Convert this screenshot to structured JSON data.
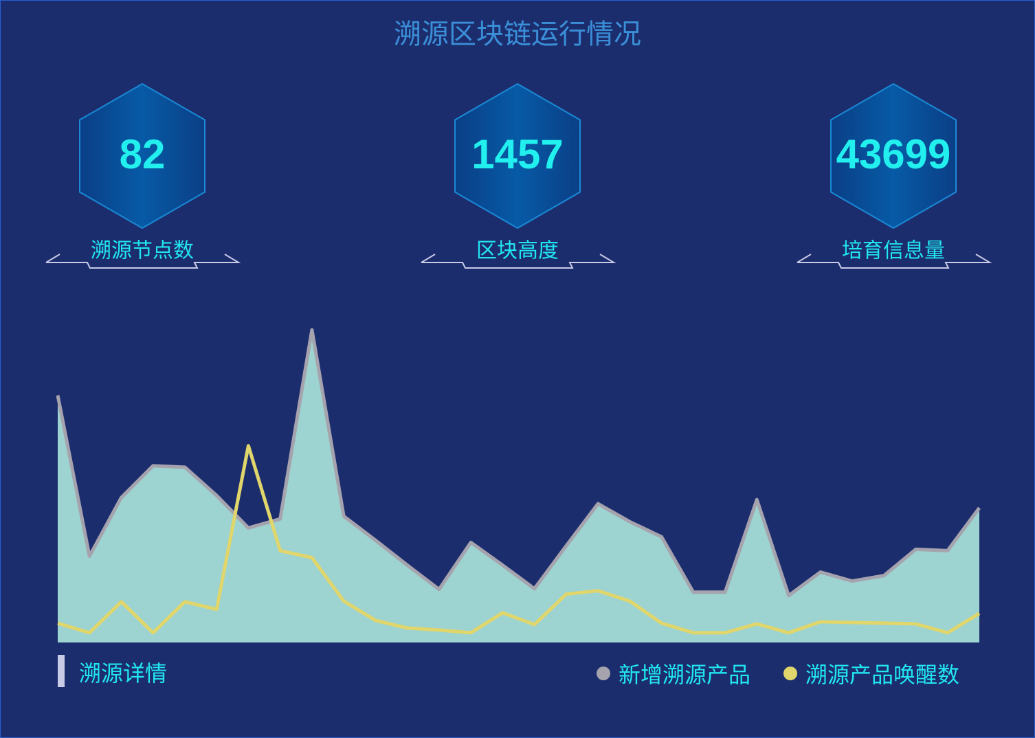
{
  "title": "溯源区块链运行情况",
  "stats": [
    {
      "value": 82,
      "label": "溯源节点数"
    },
    {
      "value": 1457,
      "label": "区块高度"
    },
    {
      "value": 43699,
      "label": "培育信息量"
    }
  ],
  "section_title": "溯源详情",
  "chart_data": {
    "type": "area",
    "series": [
      {
        "name": "新增溯源产品",
        "color": "#a5a3ae",
        "fill": "#9dd3d0",
        "values": [
          358,
          125,
          210,
          256,
          254,
          213,
          166,
          179,
          453,
          183,
          148,
          112,
          77,
          145,
          112,
          78,
          140,
          201,
          175,
          153,
          73,
          73,
          207,
          68,
          102,
          89,
          97,
          135,
          133,
          195
        ]
      },
      {
        "name": "溯源产品唤醒数",
        "color": "#e0d66b",
        "values": [
          28,
          14,
          59,
          14,
          59,
          48,
          285,
          133,
          123,
          60,
          32,
          21,
          18,
          14,
          43,
          26,
          70,
          75,
          60,
          28,
          14,
          14,
          27,
          14,
          30,
          29,
          28,
          27,
          14,
          42
        ]
      }
    ]
  }
}
